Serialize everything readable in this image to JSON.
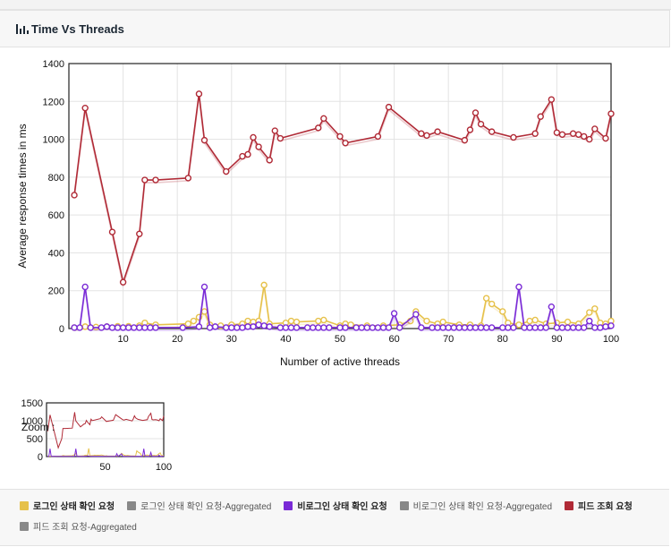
{
  "panel": {
    "title": "Time Vs Threads",
    "icon": "bar-chart-icon",
    "zoom_label": "Zoom :"
  },
  "colors": {
    "yellow": "#e6c14a",
    "purple": "#7a2ad6",
    "red": "#b02a36",
    "gray": "#888888"
  },
  "chart_data": {
    "type": "line",
    "title": "",
    "xlabel": "Number of active threads",
    "ylabel": "Average response times in ms",
    "xlim": [
      0,
      100
    ],
    "ylim": [
      0,
      1400
    ],
    "xticks": [
      10,
      20,
      30,
      40,
      50,
      60,
      70,
      80,
      90,
      100
    ],
    "yticks": [
      0,
      200,
      400,
      600,
      800,
      1000,
      1200,
      1400
    ],
    "grid": true,
    "legend_position": "bottom",
    "series": [
      {
        "name": "로그인 상태 확인 요청",
        "color": "#e6c14a",
        "x": [
          1,
          3,
          5,
          7,
          9,
          11,
          13,
          14,
          16,
          22,
          23,
          24,
          25,
          26,
          28,
          30,
          32,
          33,
          34,
          35,
          36,
          37,
          40,
          41,
          42,
          46,
          47,
          50,
          51,
          52,
          55,
          58,
          61,
          63,
          64,
          66,
          68,
          69,
          72,
          74,
          76,
          77,
          78,
          80,
          81,
          83,
          85,
          86,
          88,
          90,
          92,
          94,
          96,
          97,
          98,
          99,
          100
        ],
        "values": [
          5,
          10,
          8,
          10,
          12,
          12,
          15,
          30,
          20,
          25,
          40,
          60,
          90,
          20,
          15,
          20,
          25,
          40,
          35,
          40,
          230,
          25,
          30,
          40,
          35,
          40,
          45,
          15,
          25,
          20,
          15,
          15,
          20,
          40,
          90,
          40,
          25,
          35,
          20,
          20,
          15,
          160,
          130,
          90,
          30,
          20,
          40,
          45,
          25,
          30,
          35,
          25,
          85,
          105,
          30,
          25,
          40
        ]
      },
      {
        "name": "로그인 상태 확인 요청-Aggregated",
        "color": "#888888",
        "x": [],
        "values": []
      },
      {
        "name": "비로그인 상태 확인 요청",
        "color": "#7a2ad6",
        "x": [
          1,
          2,
          3,
          4,
          6,
          7,
          8,
          9,
          10,
          11,
          12,
          13,
          14,
          15,
          16,
          21,
          24,
          25,
          26,
          27,
          29,
          30,
          31,
          32,
          33,
          34,
          35,
          36,
          37,
          39,
          40,
          41,
          42,
          44,
          45,
          46,
          47,
          48,
          50,
          51,
          53,
          54,
          55,
          56,
          57,
          58,
          59,
          60,
          61,
          64,
          65,
          67,
          68,
          69,
          70,
          71,
          72,
          73,
          74,
          75,
          76,
          77,
          78,
          80,
          81,
          82,
          83,
          84,
          85,
          86,
          87,
          88,
          89,
          90,
          91,
          92,
          93,
          94,
          95,
          96,
          97,
          98,
          99,
          100
        ],
        "values": [
          5,
          5,
          220,
          5,
          5,
          10,
          5,
          5,
          5,
          5,
          5,
          5,
          5,
          5,
          5,
          5,
          10,
          220,
          5,
          10,
          5,
          5,
          5,
          5,
          10,
          10,
          20,
          15,
          10,
          5,
          5,
          5,
          5,
          5,
          5,
          5,
          5,
          5,
          5,
          5,
          5,
          5,
          5,
          5,
          5,
          5,
          5,
          80,
          5,
          75,
          5,
          5,
          5,
          5,
          5,
          5,
          5,
          5,
          5,
          5,
          5,
          5,
          5,
          5,
          5,
          5,
          220,
          5,
          5,
          5,
          5,
          5,
          115,
          5,
          5,
          5,
          5,
          5,
          5,
          40,
          5,
          5,
          10,
          15
        ]
      },
      {
        "name": "비로그인 상태 확인 요청-Aggregated",
        "color": "#888888",
        "x": [],
        "values": []
      },
      {
        "name": "피드 조회 요청",
        "color": "#b02a36",
        "x": [
          1,
          3,
          8,
          10,
          13,
          14,
          16,
          22,
          24,
          25,
          29,
          32,
          33,
          34,
          35,
          37,
          38,
          39,
          46,
          47,
          50,
          51,
          57,
          59,
          65,
          66,
          68,
          73,
          74,
          75,
          76,
          78,
          82,
          86,
          87,
          89,
          90,
          91,
          93,
          94,
          95,
          96,
          97,
          99,
          100
        ],
        "values": [
          705,
          1165,
          510,
          245,
          500,
          785,
          785,
          795,
          1240,
          995,
          830,
          910,
          920,
          1010,
          960,
          890,
          1045,
          1005,
          1060,
          1110,
          1015,
          980,
          1015,
          1170,
          1030,
          1020,
          1040,
          995,
          1050,
          1140,
          1080,
          1040,
          1010,
          1030,
          1120,
          1210,
          1035,
          1025,
          1030,
          1025,
          1015,
          1000,
          1055,
          1005,
          1135
        ]
      },
      {
        "name": "피드 조회 요청-Aggregated",
        "color": "#888888",
        "x": [],
        "values": []
      }
    ],
    "zoom": {
      "xticks": [
        50,
        100
      ],
      "yticks": [
        0,
        500,
        1000,
        1500
      ],
      "xlim": [
        0,
        100
      ],
      "ylim": [
        0,
        1500
      ]
    }
  },
  "legend": [
    [
      {
        "label": "로그인 상태 확인 요청",
        "color": "#e6c14a",
        "style": "bold"
      },
      {
        "label": "로그인 상태 확인 요청-Aggregated",
        "color": "#888888",
        "style": "muted"
      },
      {
        "label": "비로그인 상태 확인 요청",
        "color": "#7a2ad6",
        "style": "bold"
      },
      {
        "label": "비로그인 상태 확인 요청-Aggregated",
        "color": "#888888",
        "style": "muted"
      },
      {
        "label": "피드 조회 요청",
        "color": "#b02a36",
        "style": "bold"
      }
    ],
    [
      {
        "label": "피드 조회 요청-Aggregated",
        "color": "#888888",
        "style": "muted"
      }
    ]
  ]
}
